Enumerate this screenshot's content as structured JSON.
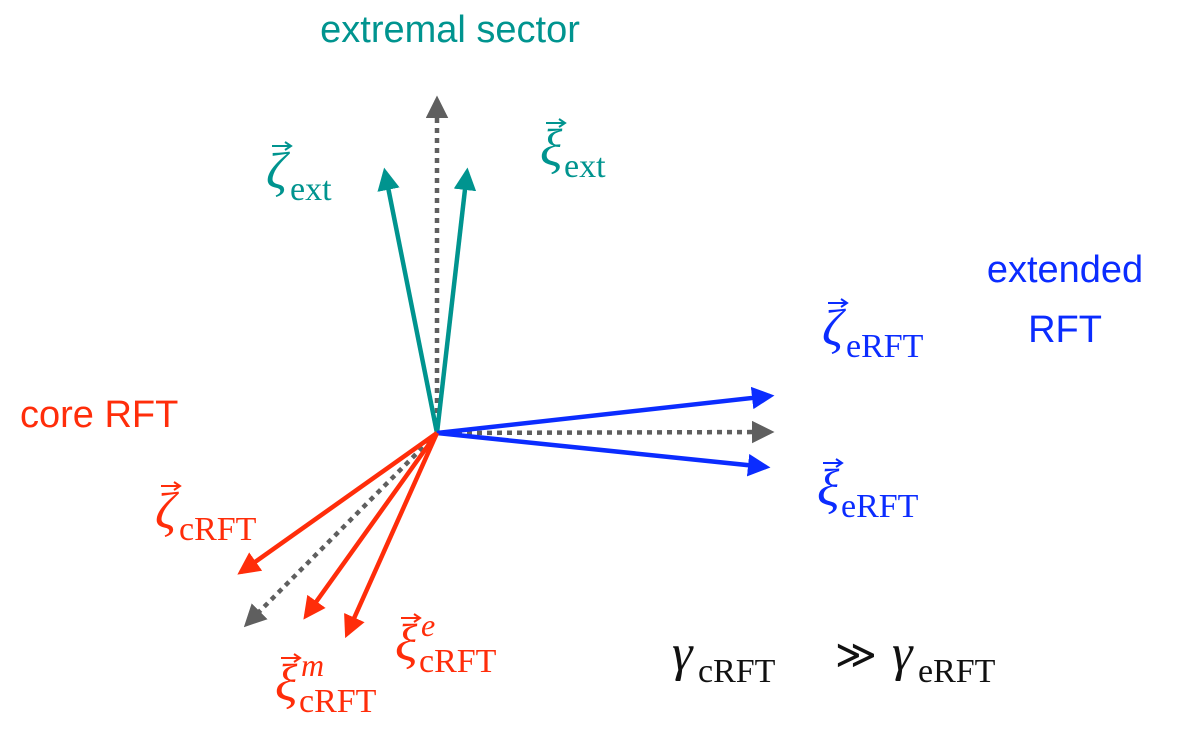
{
  "sectors": [
    {
      "lines": [
        "extremal sector"
      ]
    },
    {
      "lines": [
        "extended",
        "RFT"
      ]
    },
    {
      "lines": [
        "core RFT"
      ]
    }
  ],
  "vectors": [
    {
      "symbol": "ζ",
      "subscript": "ext"
    },
    {
      "symbol": "ξ",
      "subscript": "ext"
    },
    {
      "symbol": "ζ",
      "subscript": "eRFT"
    },
    {
      "symbol": "ξ",
      "subscript": "eRFT"
    },
    {
      "symbol": "ζ",
      "subscript": "cRFT"
    },
    {
      "symbol": "ξ",
      "superscript": "e",
      "subscript": "cRFT"
    },
    {
      "symbol": "ξ",
      "superscript": "m",
      "subscript": "cRFT"
    }
  ],
  "formula": {
    "left_symbol": "γ",
    "left_subscript": "cRFT",
    "relation": "≫",
    "right_symbol": "γ",
    "right_subscript": "eRFT"
  }
}
